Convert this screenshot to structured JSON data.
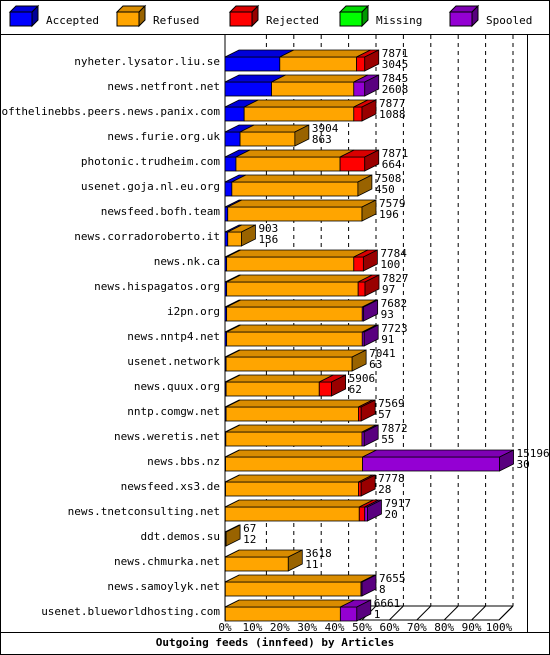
{
  "chart_data": {
    "type": "bar",
    "stacked": true,
    "orientation": "horizontal",
    "title": "Outgoing feeds (innfeed) by Articles",
    "xlabel": "",
    "ylabel": "",
    "xlim": [
      0,
      100
    ],
    "x_ticks": [
      "0%",
      "10%",
      "20%",
      "30%",
      "40%",
      "50%",
      "60%",
      "70%",
      "80%",
      "90%",
      "100%"
    ],
    "grid": "vertical dashed",
    "legend_position": "top",
    "series": [
      {
        "name": "Accepted",
        "color": "#0000ff"
      },
      {
        "name": "Refused",
        "color": "#ffa500"
      },
      {
        "name": "Rejected",
        "color": "#ff0000"
      },
      {
        "name": "Missing",
        "color": "#00ff00"
      },
      {
        "name": "Spooled",
        "color": "#9400d3"
      }
    ],
    "categories": [
      "nyheter.lysator.liu.se",
      "news.netfront.net",
      "endofthelinebbs.peers.news.panix.com",
      "news.furie.org.uk",
      "photonic.trudheim.com",
      "usenet.goja.nl.eu.org",
      "newsfeed.bofh.team",
      "news.corradoroberto.it",
      "news.nk.ca",
      "news.hispagatos.org",
      "i2pn.org",
      "news.nntp4.net",
      "usenet.network",
      "news.quux.org",
      "nntp.comgw.net",
      "news.weretis.net",
      "news.bbs.nz",
      "newsfeed.xs3.de",
      "news.tnetconsulting.net",
      "ddt.demos.su",
      "news.chmurka.net",
      "news.samoylyk.net",
      "usenet.blueworldhosting.com"
    ],
    "totals": [
      7871,
      7845,
      7877,
      3904,
      7871,
      7508,
      7579,
      903,
      7784,
      7827,
      7682,
      7723,
      7041,
      5906,
      7569,
      7872,
      15196,
      7778,
      7917,
      67,
      3618,
      7655,
      6661
    ],
    "accepted": [
      3045,
      2608,
      1088,
      863,
      664,
      450,
      196,
      136,
      100,
      97,
      93,
      91,
      63,
      62,
      57,
      55,
      30,
      28,
      20,
      12,
      11,
      8,
      1
    ],
    "rows": [
      {
        "accepted": 20.0,
        "refused": 28.0,
        "rejected": 3.0,
        "missing": 0,
        "spooled": 0
      },
      {
        "accepted": 17.0,
        "refused": 30.0,
        "rejected": 0,
        "missing": 0,
        "spooled": 4.0
      },
      {
        "accepted": 7.0,
        "refused": 40.0,
        "rejected": 3.0,
        "missing": 0,
        "spooled": 0
      },
      {
        "accepted": 5.5,
        "refused": 20.0,
        "rejected": 0,
        "missing": 0,
        "spooled": 0
      },
      {
        "accepted": 4.0,
        "refused": 38.0,
        "rejected": 9.0,
        "missing": 0,
        "spooled": 0
      },
      {
        "accepted": 2.5,
        "refused": 46.0,
        "rejected": 0,
        "missing": 0,
        "spooled": 0
      },
      {
        "accepted": 1.0,
        "refused": 49.0,
        "rejected": 0,
        "missing": 0,
        "spooled": 0
      },
      {
        "accepted": 1.0,
        "refused": 5.0,
        "rejected": 0,
        "missing": 0,
        "spooled": 0
      },
      {
        "accepted": 0.6,
        "refused": 46.4,
        "rejected": 3.5,
        "missing": 0,
        "spooled": 0
      },
      {
        "accepted": 0.6,
        "refused": 48.0,
        "rejected": 2.5,
        "missing": 0,
        "spooled": 0
      },
      {
        "accepted": 0.6,
        "refused": 49.5,
        "rejected": 0,
        "missing": 0,
        "spooled": 0.5
      },
      {
        "accepted": 0.6,
        "refused": 49.5,
        "rejected": 0,
        "missing": 0,
        "spooled": 0.7
      },
      {
        "accepted": 0.4,
        "refused": 46.0,
        "rejected": 0,
        "missing": 0,
        "spooled": 0
      },
      {
        "accepted": 0.4,
        "refused": 34.0,
        "rejected": 4.5,
        "missing": 0,
        "spooled": 0
      },
      {
        "accepted": 0.4,
        "refused": 48.3,
        "rejected": 1.0,
        "missing": 0,
        "spooled": 0
      },
      {
        "accepted": 0.3,
        "refused": 49.7,
        "rejected": 0,
        "missing": 0,
        "spooled": 0.8
      },
      {
        "accepted": 0.2,
        "refused": 50.0,
        "rejected": 0,
        "missing": 0,
        "spooled": 50.0
      },
      {
        "accepted": 0.2,
        "refused": 48.5,
        "rejected": 1.0,
        "missing": 0,
        "spooled": 0
      },
      {
        "accepted": 0.1,
        "refused": 48.9,
        "rejected": 2.0,
        "missing": 0,
        "spooled": 1.0
      },
      {
        "accepted": 0.1,
        "refused": 0.3,
        "rejected": 0,
        "missing": 0,
        "spooled": 0
      },
      {
        "accepted": 0.1,
        "refused": 23.0,
        "rejected": 0,
        "missing": 0,
        "spooled": 0
      },
      {
        "accepted": 0.1,
        "refused": 49.5,
        "rejected": 0,
        "missing": 0,
        "spooled": 0.4
      },
      {
        "accepted": 0.1,
        "refused": 42.0,
        "rejected": 0,
        "missing": 0,
        "spooled": 6.0
      }
    ]
  }
}
